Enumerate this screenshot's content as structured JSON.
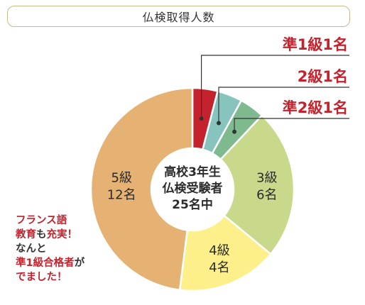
{
  "title": "仏検取得人数",
  "center": {
    "line1": "高校3年生",
    "line2": "仏検受験者",
    "line3": "25名中"
  },
  "chart_data": {
    "type": "pie",
    "total": 25,
    "slices": [
      {
        "label": "準1級",
        "count_label": "1名",
        "value": 1,
        "color": "#c4232e"
      },
      {
        "label": "2級",
        "count_label": "1名",
        "value": 1,
        "color": "#86c4bd"
      },
      {
        "label": "準2級",
        "count_label": "1名",
        "value": 1,
        "color": "#7fb98e"
      },
      {
        "label": "3級",
        "count_label": "6名",
        "value": 6,
        "color": "#c9d98c"
      },
      {
        "label": "4級",
        "count_label": "4名",
        "value": 4,
        "color": "#fdf08a"
      },
      {
        "label": "5級",
        "count_label": "12名",
        "value": 12,
        "color": "#e5b274"
      }
    ]
  },
  "note": {
    "l1": "フランス語",
    "l2a": "教育",
    "l2b": "も",
    "l2c": "充実！",
    "l3": "なんと",
    "l4a": "準1級合格者",
    "l4b": "が",
    "l5": "でました！"
  }
}
